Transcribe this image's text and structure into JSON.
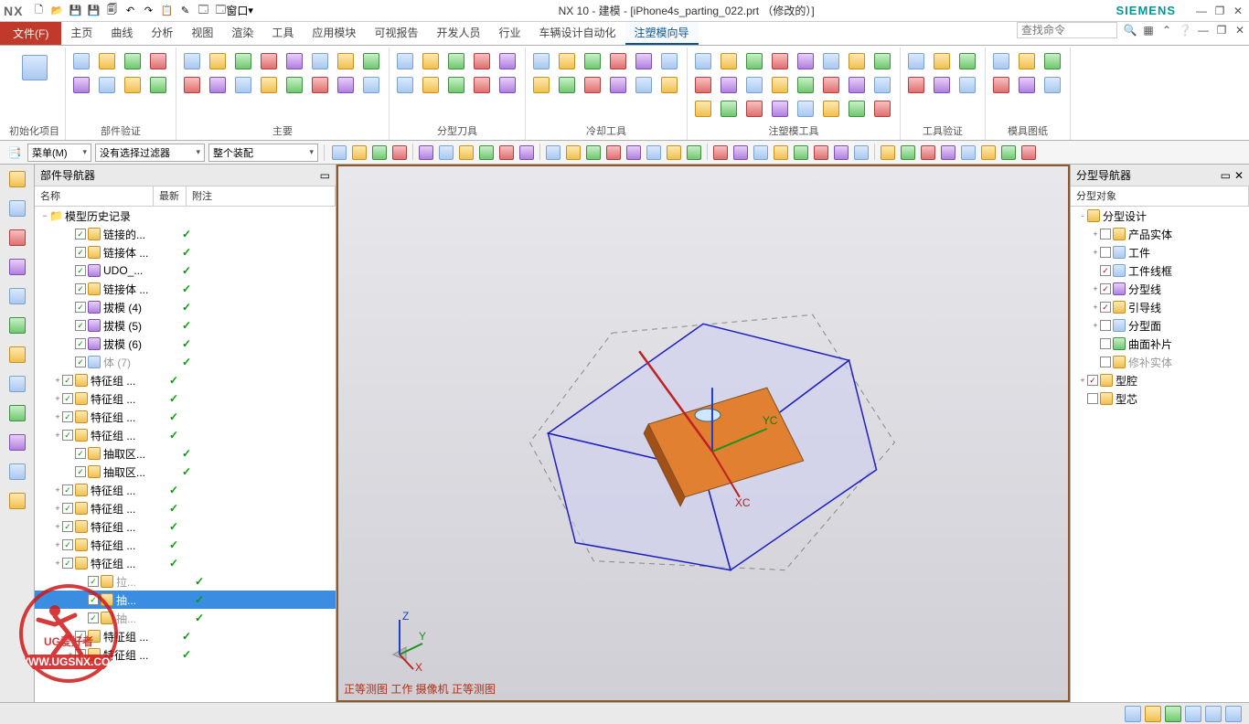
{
  "title": "NX 10 - 建模 - [iPhone4s_parting_022.prt （修改的）]",
  "brand": "SIEMENS",
  "logo": "NX",
  "qat": [
    "🗋",
    "📂",
    "💾",
    "💾",
    "🗐",
    "↶",
    "↷",
    "📋",
    "✎",
    "🗔"
  ],
  "qat_window_label": "窗口",
  "file_tab": "文件(F)",
  "tabs": [
    "主页",
    "曲线",
    "分析",
    "视图",
    "渲染",
    "工具",
    "应用模块",
    "可视报告",
    "开发人员",
    "行业",
    "车辆设计自动化",
    "注塑模向导"
  ],
  "active_tab_index": 11,
  "search_placeholder": "查找命令",
  "ribbon_groups": [
    {
      "label": "初始化项目",
      "big": true
    },
    {
      "label": "部件验证",
      "cols": "c4",
      "count": 8
    },
    {
      "label": "主要",
      "cols": "c8",
      "count": 16
    },
    {
      "label": "分型刀具",
      "cols": "c5",
      "count": 10
    },
    {
      "label": "冷却工具",
      "cols": "c6",
      "count": 12
    },
    {
      "label": "注塑模工具",
      "cols": "c8",
      "count": 24
    },
    {
      "label": "工具验证",
      "cols": "c3",
      "count": 6
    },
    {
      "label": "模具图纸",
      "cols": "c3",
      "count": 6
    }
  ],
  "menu_button": "菜单(M)",
  "filter_combo": "没有选择过滤器",
  "assembly_combo": "整个装配",
  "left_panel_title": "部件导航器",
  "tree_cols": {
    "name": "名称",
    "new": "最新",
    "note": "附注"
  },
  "tree_root": "模型历史记录",
  "tree_rows": [
    {
      "exp": "",
      "chk": true,
      "ico": "y",
      "name": "链接的...",
      "tick": true,
      "ind": 2
    },
    {
      "exp": "",
      "chk": true,
      "ico": "y",
      "name": "链接体 ...",
      "tick": true,
      "ind": 2
    },
    {
      "exp": "",
      "chk": true,
      "ico": "p",
      "name": "UDO_...",
      "tick": true,
      "ind": 2
    },
    {
      "exp": "",
      "chk": true,
      "ico": "y",
      "name": "链接体 ...",
      "tick": true,
      "ind": 2
    },
    {
      "exp": "",
      "chk": true,
      "ico": "p",
      "name": "拔模 (4)",
      "tick": true,
      "ind": 2
    },
    {
      "exp": "",
      "chk": true,
      "ico": "p",
      "name": "拔模 (5)",
      "tick": true,
      "ind": 2
    },
    {
      "exp": "",
      "chk": true,
      "ico": "p",
      "name": "拔模 (6)",
      "tick": true,
      "ind": 2
    },
    {
      "exp": "",
      "chk": true,
      "ico": "",
      "name": "体 (7)",
      "tick": true,
      "ind": 2,
      "gray": true
    },
    {
      "exp": "+",
      "chk": true,
      "ico": "y",
      "name": "特征组 ...",
      "tick": true,
      "ind": 1
    },
    {
      "exp": "+",
      "chk": true,
      "ico": "y",
      "name": "特征组 ...",
      "tick": true,
      "ind": 1
    },
    {
      "exp": "+",
      "chk": true,
      "ico": "y",
      "name": "特征组 ...",
      "tick": true,
      "ind": 1
    },
    {
      "exp": "+",
      "chk": true,
      "ico": "y",
      "name": "特征组 ...",
      "tick": true,
      "ind": 1
    },
    {
      "exp": "",
      "chk": true,
      "ico": "y",
      "name": "抽取区...",
      "tick": true,
      "ind": 2
    },
    {
      "exp": "",
      "chk": true,
      "ico": "y",
      "name": "抽取区...",
      "tick": true,
      "ind": 2
    },
    {
      "exp": "+",
      "chk": true,
      "ico": "y",
      "name": "特征组 ...",
      "tick": true,
      "ind": 1
    },
    {
      "exp": "+",
      "chk": true,
      "ico": "y",
      "name": "特征组 ...",
      "tick": true,
      "ind": 1
    },
    {
      "exp": "+",
      "chk": true,
      "ico": "y",
      "name": "特征组 ...",
      "tick": true,
      "ind": 1
    },
    {
      "exp": "+",
      "chk": true,
      "ico": "y",
      "name": "特征组 ...",
      "tick": true,
      "ind": 1
    },
    {
      "exp": "+",
      "chk": true,
      "ico": "y",
      "name": "特征组 ...",
      "tick": true,
      "ind": 1
    },
    {
      "exp": "",
      "chk": true,
      "ico": "y",
      "name": "拉...",
      "tick": true,
      "ind": 3,
      "gray": true
    },
    {
      "exp": "",
      "chk": true,
      "ico": "y",
      "name": "抽...",
      "tick": true,
      "ind": 3,
      "sel": true
    },
    {
      "exp": "",
      "chk": true,
      "ico": "y",
      "name": "抽...",
      "tick": true,
      "ind": 3,
      "gray": true
    },
    {
      "exp": "+",
      "chk": true,
      "ico": "y",
      "name": "特征组 ...",
      "tick": true,
      "ind": 2
    },
    {
      "exp": "+",
      "chk": true,
      "ico": "y",
      "name": "特征组 ...",
      "tick": true,
      "ind": 2
    }
  ],
  "right_panel_title": "分型导航器",
  "right_col": "分型对象",
  "right_tree": [
    {
      "exp": "-",
      "chk": null,
      "ico": "y",
      "name": "分型设计",
      "ind": 0
    },
    {
      "exp": "+",
      "chk": false,
      "ico": "y",
      "name": "产品实体",
      "ind": 1
    },
    {
      "exp": "+",
      "chk": false,
      "ico": "",
      "name": "工件",
      "ind": 1
    },
    {
      "exp": "",
      "chk": true,
      "red": true,
      "ico": "",
      "name": "工件线框",
      "ind": 1
    },
    {
      "exp": "+",
      "chk": true,
      "red": true,
      "ico": "p",
      "name": "分型线",
      "ind": 1
    },
    {
      "exp": "+",
      "chk": true,
      "red": true,
      "ico": "y",
      "name": "引导线",
      "ind": 1
    },
    {
      "exp": "+",
      "chk": false,
      "ico": "",
      "name": "分型面",
      "ind": 1
    },
    {
      "exp": "",
      "chk": false,
      "ico": "g",
      "name": "曲面补片",
      "ind": 1
    },
    {
      "exp": "",
      "chk": false,
      "ico": "y",
      "name": "修补实体",
      "ind": 1,
      "gray": true
    },
    {
      "exp": "+",
      "chk": true,
      "red": true,
      "ico": "y",
      "name": "型腔",
      "ind": 0
    },
    {
      "exp": "",
      "chk": false,
      "ico": "y",
      "name": "型芯",
      "ind": 0
    }
  ],
  "view_label": "正等测图 工作 摄像机 正等测图",
  "axis": {
    "x": "X",
    "y": "Y",
    "z": "Z",
    "xc": "XC",
    "yc": "YC"
  },
  "viewport": {
    "bg_top": "#e8e8ec",
    "bg_bot": "#cfcfd5",
    "border": "#8a5a2a",
    "surface_fill": "#d0d0f0",
    "surface_stroke": "#2020c0",
    "core_fill": "#e08030",
    "core_stroke": "#805020",
    "axis_x": "#c02020",
    "axis_y": "#209020",
    "axis_z": "#2040c0"
  },
  "watermark": {
    "text1": "UG爱好者",
    "text2": "WWW.UGSNX.COM",
    "color": "#d01818"
  }
}
